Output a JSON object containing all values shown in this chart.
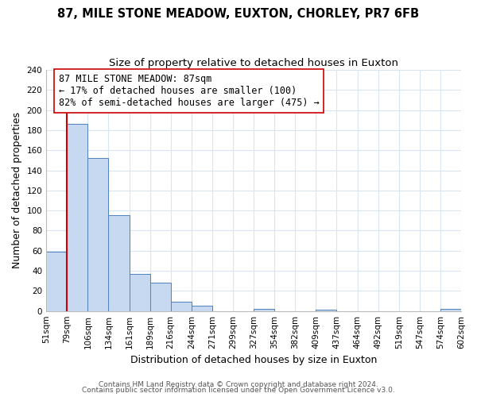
{
  "title": "87, MILE STONE MEADOW, EUXTON, CHORLEY, PR7 6FB",
  "subtitle": "Size of property relative to detached houses in Euxton",
  "xlabel": "Distribution of detached houses by size in Euxton",
  "ylabel": "Number of detached properties",
  "bar_edges": [
    51,
    79,
    106,
    134,
    161,
    189,
    216,
    244,
    271,
    299,
    327,
    354,
    382,
    409,
    437,
    464,
    492,
    519,
    547,
    574,
    602
  ],
  "bar_heights": [
    59,
    186,
    152,
    95,
    37,
    28,
    9,
    5,
    0,
    0,
    2,
    0,
    0,
    1,
    0,
    0,
    0,
    0,
    0,
    2
  ],
  "bar_color": "#c6d9f0",
  "bar_edge_color": "#4f81bd",
  "property_size": 87,
  "property_line_color": "#cc0000",
  "annotation_text": "87 MILE STONE MEADOW: 87sqm\n← 17% of detached houses are smaller (100)\n82% of semi-detached houses are larger (475) →",
  "annotation_box_edge_color": "#cc0000",
  "ylim": [
    0,
    240
  ],
  "yticks": [
    0,
    20,
    40,
    60,
    80,
    100,
    120,
    140,
    160,
    180,
    200,
    220,
    240
  ],
  "tick_labels": [
    "51sqm",
    "79sqm",
    "106sqm",
    "134sqm",
    "161sqm",
    "189sqm",
    "216sqm",
    "244sqm",
    "271sqm",
    "299sqm",
    "327sqm",
    "354sqm",
    "382sqm",
    "409sqm",
    "437sqm",
    "464sqm",
    "492sqm",
    "519sqm",
    "547sqm",
    "574sqm",
    "602sqm"
  ],
  "footer_line1": "Contains HM Land Registry data © Crown copyright and database right 2024.",
  "footer_line2": "Contains public sector information licensed under the Open Government Licence v3.0.",
  "background_color": "#ffffff",
  "grid_color": "#d8e4f0",
  "title_fontsize": 10.5,
  "subtitle_fontsize": 9.5,
  "axis_label_fontsize": 9,
  "tick_fontsize": 7.5,
  "annotation_fontsize": 8.5,
  "footer_fontsize": 6.5
}
